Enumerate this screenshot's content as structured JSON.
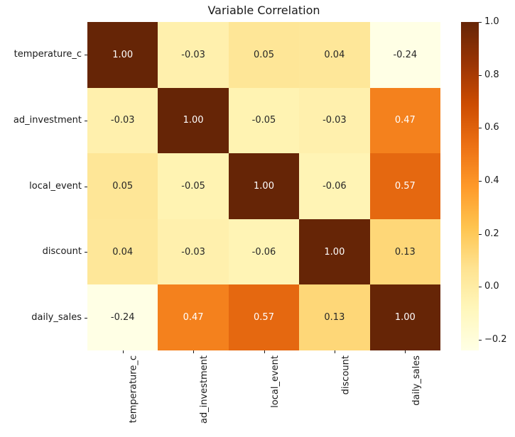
{
  "title": "Variable Correlation",
  "chart_data": {
    "type": "heatmap",
    "title": "Variable Correlation",
    "categories": [
      "temperature_c",
      "ad_investment",
      "local_event",
      "discount",
      "daily_sales"
    ],
    "matrix": [
      [
        1.0,
        -0.03,
        0.05,
        0.04,
        -0.24
      ],
      [
        -0.03,
        1.0,
        -0.05,
        -0.03,
        0.47
      ],
      [
        0.05,
        -0.05,
        1.0,
        -0.06,
        0.57
      ],
      [
        0.04,
        -0.03,
        -0.06,
        1.0,
        0.13
      ],
      [
        -0.24,
        0.47,
        0.57,
        0.13,
        1.0
      ]
    ],
    "cell_labels": [
      [
        "1.00",
        "-0.03",
        "0.05",
        "0.04",
        "-0.24"
      ],
      [
        "-0.03",
        "1.00",
        "-0.05",
        "-0.03",
        "0.47"
      ],
      [
        "0.05",
        "-0.05",
        "1.00",
        "-0.06",
        "0.57"
      ],
      [
        "0.04",
        "-0.03",
        "-0.06",
        "1.00",
        "0.13"
      ],
      [
        "-0.24",
        "0.47",
        "0.57",
        "0.13",
        "1.00"
      ]
    ],
    "cell_colors": [
      [
        "#662506",
        "#fff0ad",
        "#fee697",
        "#fee799",
        "#ffffe5"
      ],
      [
        "#fff0ad",
        "#662506",
        "#fff3b2",
        "#fff0ad",
        "#f4811d"
      ],
      [
        "#fee697",
        "#fff3b2",
        "#662506",
        "#fff4b5",
        "#e56810"
      ],
      [
        "#fee799",
        "#fff0ad",
        "#fff4b5",
        "#662506",
        "#fed778"
      ],
      [
        "#ffffe5",
        "#f4811d",
        "#e56810",
        "#fed778",
        "#662506"
      ]
    ],
    "cell_text_colors": [
      [
        "#ffffff",
        "#262626",
        "#262626",
        "#262626",
        "#262626"
      ],
      [
        "#262626",
        "#ffffff",
        "#262626",
        "#262626",
        "#ffffff"
      ],
      [
        "#262626",
        "#262626",
        "#ffffff",
        "#262626",
        "#ffffff"
      ],
      [
        "#262626",
        "#262626",
        "#262626",
        "#ffffff",
        "#262626"
      ],
      [
        "#262626",
        "#ffffff",
        "#ffffff",
        "#262626",
        "#ffffff"
      ]
    ],
    "colormap": "YlOrBr",
    "vmin": -0.24,
    "vmax": 1.0,
    "grid_on": false,
    "colorbar": {
      "position": "right",
      "tick_labels": [
        "1.0",
        "0.8",
        "0.6",
        "0.4",
        "0.2",
        "0.0",
        "−0.2"
      ],
      "tick_values": [
        1.0,
        0.8,
        0.6,
        0.4,
        0.2,
        0.0,
        -0.2
      ],
      "gradient_bottom_to_top": [
        "#ffffe5",
        "#fff7bc",
        "#fee391",
        "#fec44f",
        "#fe9929",
        "#ec7014",
        "#cc4c02",
        "#993404",
        "#662506"
      ]
    }
  }
}
